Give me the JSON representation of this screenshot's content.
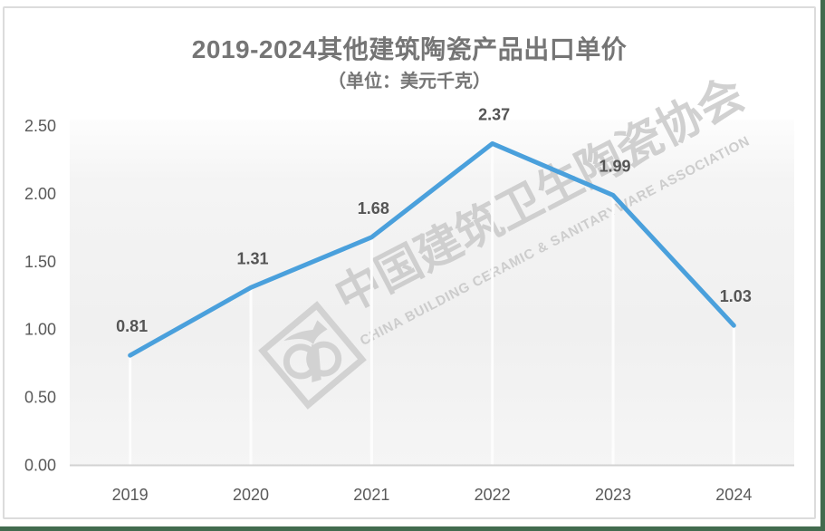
{
  "page": {
    "frame_border_color": "#dcdcdc",
    "edge_line_color": "#426b4e"
  },
  "chart_data": {
    "type": "line",
    "title": "2019-2024其他建筑陶瓷产品出口单价",
    "subtitle": "（单位：美元千克）",
    "categories": [
      "2019",
      "2020",
      "2021",
      "2022",
      "2023",
      "2024"
    ],
    "series": [
      {
        "name": "出口单价",
        "values": [
          0.81,
          1.31,
          1.68,
          2.37,
          1.99,
          1.03
        ],
        "value_labels": [
          "0.81",
          "1.31",
          "1.68",
          "2.37",
          "1.99",
          "1.03"
        ]
      }
    ],
    "xlabel": "",
    "ylabel": "",
    "ylim": [
      0,
      2.5
    ],
    "ytick_step": 0.5,
    "ytick_labels": [
      "0.00",
      "0.50",
      "1.00",
      "1.50",
      "2.00",
      "2.50"
    ],
    "grid": "vertical drop-lines from each data point to x-axis",
    "legend_position": "none",
    "markers": "none",
    "line_color": "#4aa0dc",
    "drop_line_color": "#fdfdfd",
    "axis_line_color": "#d2d2d2",
    "tick_label_color": "#595959",
    "data_label_color": "#555555",
    "title_color": "#757575"
  },
  "watermark": {
    "text_cn": "中国建筑卫生陶瓷协会",
    "text_en": "CHINA BUILDING CERAMIC & SANITARYWARE ASSOCIATION",
    "logo": "cbcsa-diamond-logo",
    "color": "#c9c9c9"
  }
}
